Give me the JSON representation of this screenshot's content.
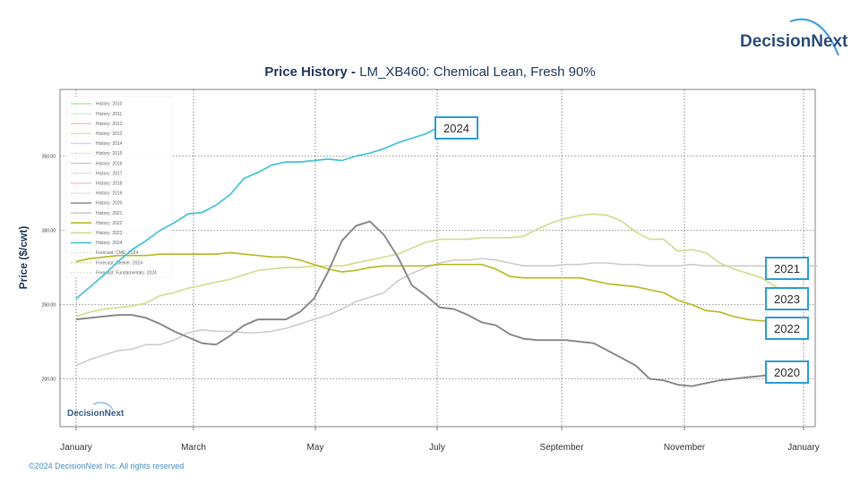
{
  "brand": {
    "name": "DecisionNext",
    "footer": "©2024 DecisionNext Inc. All rights reserved"
  },
  "header": {
    "title_bold": "Price History - ",
    "title_rest": "LM_XB460: Chemical Lean, Fresh 90%"
  },
  "colors": {
    "y2020": "#8c8c8c",
    "y2021": "#cdcdcd",
    "y2022": "#b9bc2e",
    "y2023": "#d6dc92",
    "y2024": "#43c4d8",
    "callout_border": "#2f9fd8",
    "title": "#1f3b5e",
    "ylabel": "#1f3b5e"
  },
  "chart_data": {
    "type": "line",
    "title": "Price History - LM_XB460: Chemical Lean, Fresh 90%",
    "ylabel": "Price ($/cwt)",
    "xlabel": "",
    "x_ticks": [
      "January",
      "March",
      "May",
      "July",
      "September",
      "November",
      "January"
    ],
    "y_ticks": [
      "200.00",
      "250.00",
      "300.00",
      "350.00"
    ],
    "ylim": [
      160,
      395
    ],
    "grid": true,
    "legend_position": "top-left",
    "legend": [
      "History: 2010",
      "History: 2011",
      "History: 2012",
      "History: 2013",
      "History: 2014",
      "History: 2015",
      "History: 2016",
      "History: 2017",
      "History: 2018",
      "History: 2019",
      "History: 2020",
      "History: 2021",
      "History: 2022",
      "History: 2023",
      "History: 2024",
      "Forecast: CME: 2024",
      "Forecast: Seeker: 2024",
      "Forecast: Fundamentals: 2024"
    ],
    "series": [
      {
        "name": "2020",
        "color": "#8c8c8c",
        "x": [
          1,
          2,
          3,
          4,
          5,
          6,
          7,
          8,
          9,
          10,
          11,
          12,
          13,
          14,
          15,
          16,
          17,
          18,
          19,
          20,
          21,
          22,
          23,
          24,
          25,
          26,
          27,
          28,
          29,
          30,
          31,
          32,
          33,
          34,
          35,
          36,
          37,
          38,
          39,
          40,
          41,
          42,
          43,
          44,
          45,
          46,
          47,
          48,
          49,
          50,
          51,
          52
        ],
        "values": [
          240,
          241,
          242,
          243,
          243,
          241,
          237,
          232,
          228,
          224,
          223,
          229,
          236,
          240,
          240,
          240,
          245,
          254,
          272,
          293,
          303,
          306,
          297,
          282,
          263,
          256,
          248,
          247,
          243,
          238,
          236,
          230,
          227,
          226,
          226,
          226,
          225,
          224,
          219,
          214,
          209,
          200,
          199,
          196,
          195,
          197,
          199,
          200,
          201,
          202,
          203,
          204
        ]
      },
      {
        "name": "2021",
        "color": "#cdcdcd",
        "x": [
          1,
          2,
          3,
          4,
          5,
          6,
          7,
          8,
          9,
          10,
          11,
          12,
          13,
          14,
          15,
          16,
          17,
          18,
          19,
          20,
          21,
          22,
          23,
          24,
          25,
          26,
          27,
          28,
          29,
          30,
          31,
          32,
          33,
          34,
          35,
          36,
          37,
          38,
          39,
          40,
          41,
          42,
          43,
          44,
          45,
          46,
          47,
          48,
          49,
          50,
          51,
          52,
          53,
          54
        ],
        "values": [
          209,
          213,
          216,
          219,
          220,
          223,
          223,
          226,
          231,
          233,
          232,
          232,
          231,
          231,
          232,
          234,
          237,
          240,
          243,
          247,
          252,
          255,
          258,
          266,
          271,
          275,
          278,
          280,
          280,
          281,
          280,
          278,
          276,
          276,
          276,
          277,
          277,
          278,
          278,
          277,
          277,
          276,
          276,
          276,
          277,
          276,
          276,
          276,
          276,
          276,
          276,
          276,
          276,
          276
        ]
      },
      {
        "name": "2022",
        "color": "#b9bc2e",
        "x": [
          1,
          2,
          3,
          4,
          5,
          6,
          7,
          8,
          9,
          10,
          11,
          12,
          13,
          14,
          15,
          16,
          17,
          18,
          19,
          20,
          21,
          22,
          23,
          24,
          25,
          26,
          27,
          28,
          29,
          30,
          31,
          32,
          33,
          34,
          35,
          36,
          37,
          38,
          39,
          40,
          41,
          42,
          43,
          44,
          45,
          46,
          47,
          48,
          49,
          50,
          51
        ],
        "values": [
          279,
          281,
          282,
          283,
          283,
          283,
          284,
          284,
          284,
          284,
          284,
          285,
          284,
          283,
          282,
          282,
          280,
          277,
          274,
          272,
          273,
          275,
          276,
          276,
          276,
          276,
          277,
          277,
          277,
          277,
          274,
          269,
          268,
          268,
          268,
          268,
          268,
          266,
          264,
          263,
          262,
          260,
          258,
          253,
          250,
          246,
          245,
          242,
          240,
          239,
          239
        ]
      },
      {
        "name": "2023",
        "color": "#d6dc92",
        "x": [
          1,
          2,
          3,
          4,
          5,
          6,
          7,
          8,
          9,
          10,
          11,
          12,
          13,
          14,
          15,
          16,
          17,
          18,
          19,
          20,
          21,
          22,
          23,
          24,
          25,
          26,
          27,
          28,
          29,
          30,
          31,
          32,
          33,
          34,
          35,
          36,
          37,
          38,
          39,
          40,
          41,
          42,
          43,
          44,
          45,
          46,
          47,
          48,
          49,
          50,
          51,
          52,
          53
        ],
        "values": [
          242,
          245,
          247,
          248,
          249,
          251,
          256,
          258,
          261,
          263,
          265,
          267,
          270,
          273,
          274,
          275,
          275,
          276,
          276,
          276,
          278,
          280,
          282,
          284,
          288,
          292,
          294,
          294,
          294,
          295,
          295,
          295,
          296,
          301,
          305,
          308,
          310,
          311,
          310,
          306,
          299,
          294,
          294,
          286,
          287,
          285,
          278,
          274,
          271,
          268,
          262,
          255,
          252
        ]
      },
      {
        "name": "2024",
        "color": "#43c4d8",
        "x": [
          1,
          2,
          3,
          4,
          5,
          6,
          7,
          8,
          9,
          10,
          11,
          12,
          13,
          14,
          15,
          16,
          17,
          18,
          19,
          20,
          21,
          22,
          23,
          24,
          25,
          26,
          27,
          28
        ],
        "values": [
          254,
          262,
          270,
          279,
          287,
          293,
          300,
          305,
          311,
          312,
          317,
          324,
          335,
          339,
          344,
          346,
          346,
          347,
          348,
          347,
          350,
          352,
          355,
          359,
          362,
          365,
          370,
          375
        ]
      }
    ],
    "callouts": [
      {
        "label": "2024",
        "series": "2024"
      },
      {
        "label": "2021",
        "series": "2021"
      },
      {
        "label": "2023",
        "series": "2023"
      },
      {
        "label": "2022",
        "series": "2022"
      },
      {
        "label": "2020",
        "series": "2020"
      }
    ],
    "watermark": "DecisionNext"
  }
}
